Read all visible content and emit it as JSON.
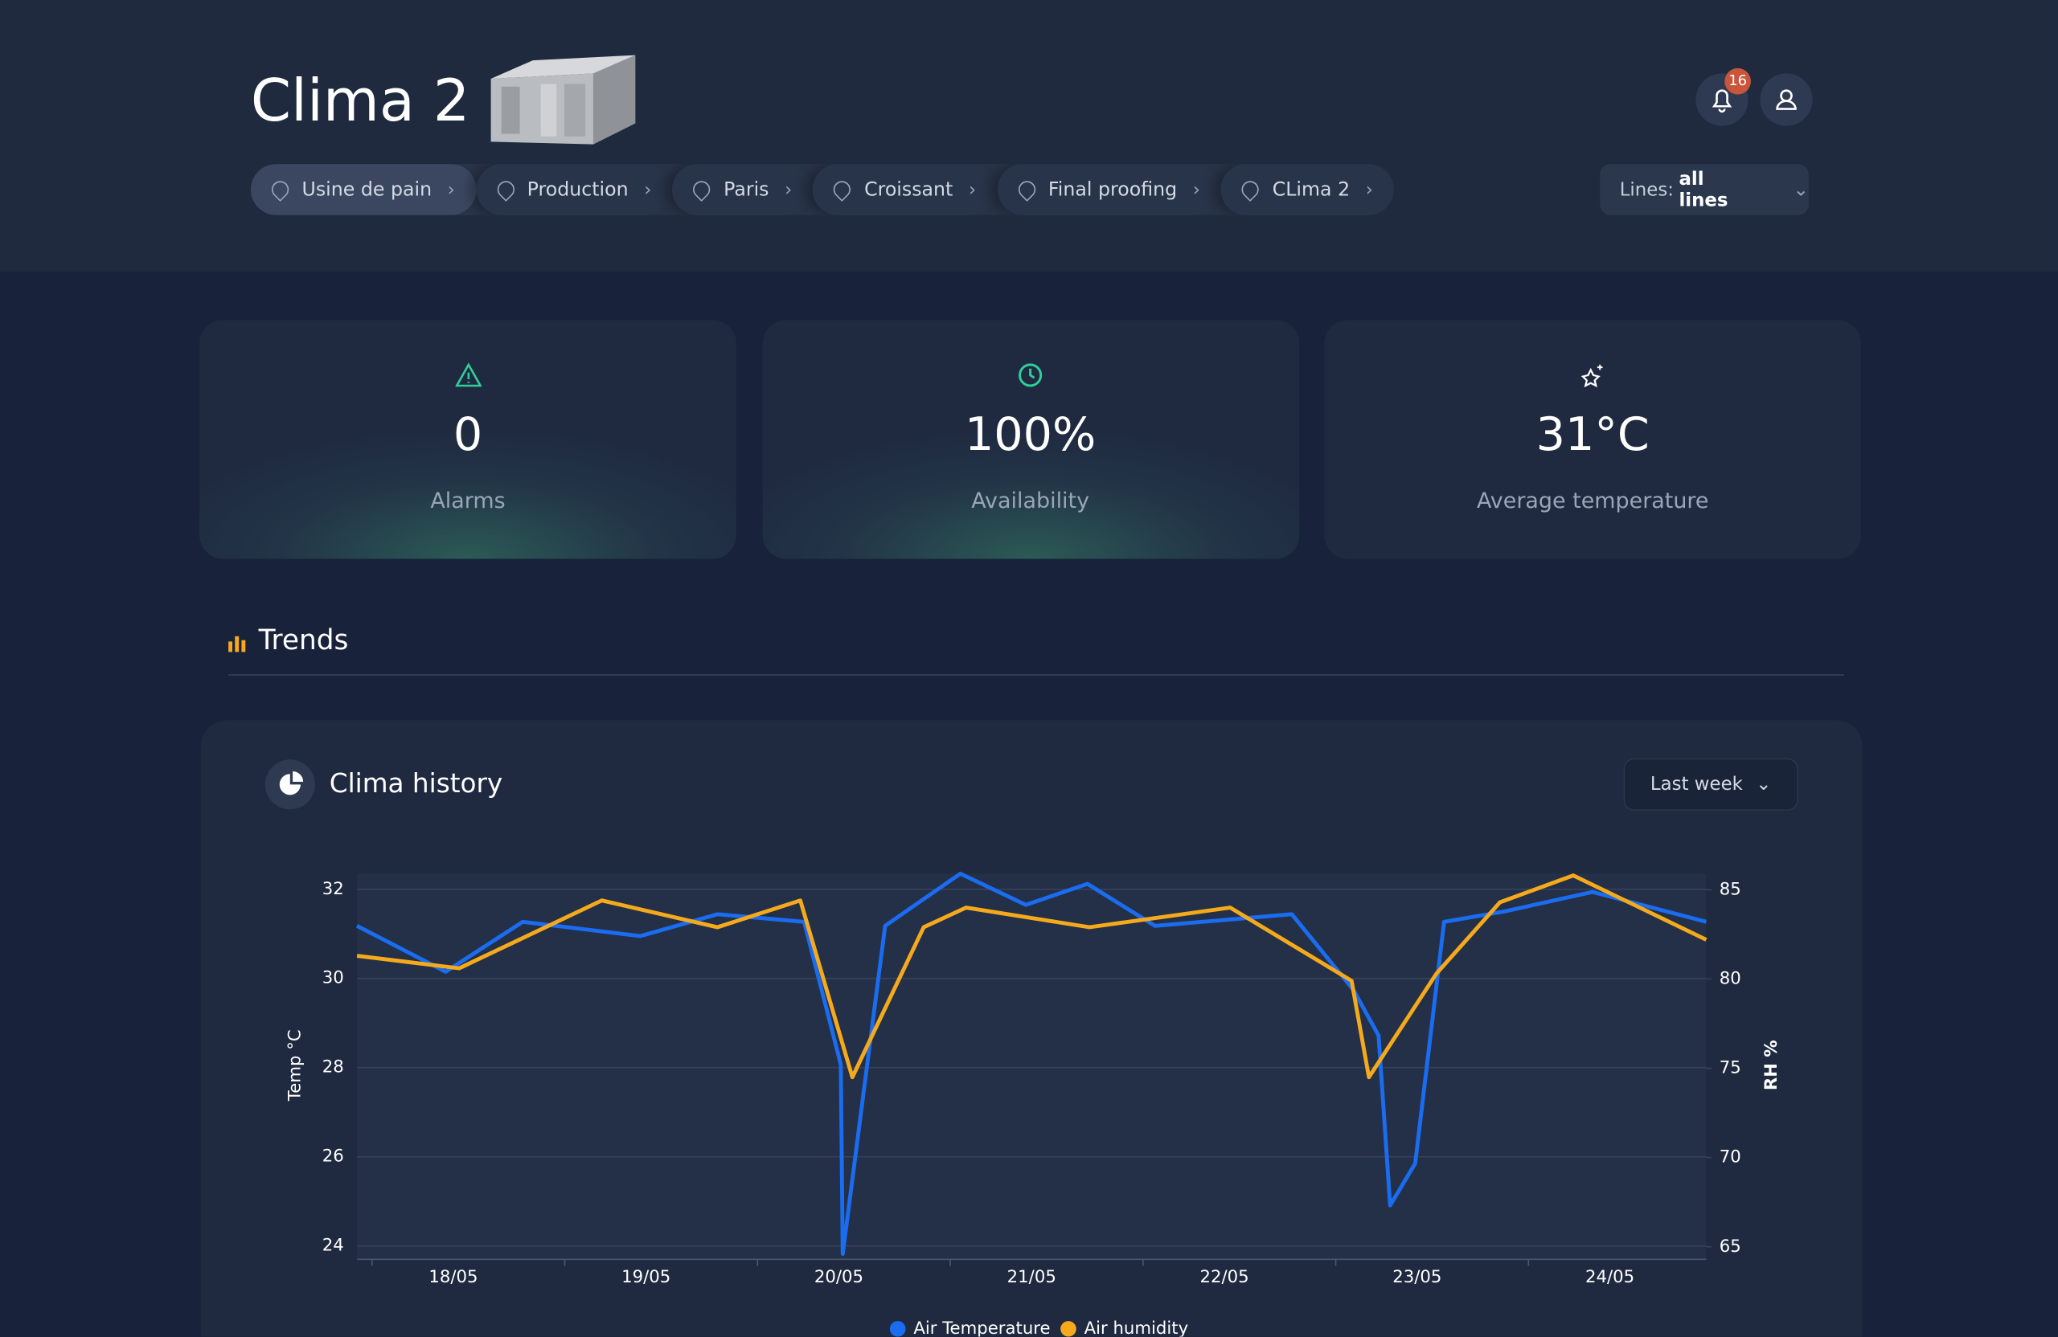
{
  "header": {
    "title": "Clima 2",
    "notifications": "16",
    "breadcrumbs": [
      "Usine de pain",
      "Production",
      "Paris",
      "Croissant",
      "Final proofing",
      "CLima 2"
    ],
    "lines_label": "Lines:",
    "lines_value": "all lines"
  },
  "kpis": [
    {
      "value": "0",
      "label": "Alarms"
    },
    {
      "value": "100%",
      "label": "Availability"
    },
    {
      "value": "31°C",
      "label": "Average temperature"
    }
  ],
  "section": "Trends",
  "chart_data": {
    "type": "line",
    "title": "Clima history",
    "period": "Last week",
    "ylabel": "Temp °C",
    "y2label": "RH %",
    "xlim": [
      17.5,
      24.5
    ],
    "xticks": [
      {
        "value": 18,
        "label": "18/05"
      },
      {
        "value": 19,
        "label": "19/05"
      },
      {
        "value": 20,
        "label": "20/05"
      },
      {
        "value": 21,
        "label": "21/05"
      },
      {
        "value": 22,
        "label": "22/05"
      },
      {
        "value": 23,
        "label": "23/05"
      },
      {
        "value": 24,
        "label": "24/05"
      }
    ],
    "ylim": [
      23.7,
      32.35
    ],
    "yticks": [
      24,
      26,
      28,
      30,
      32
    ],
    "y2lim": [
      64.3,
      85.9
    ],
    "y2ticks": [
      65,
      70,
      75,
      80,
      85
    ],
    "series": [
      {
        "name": "Air Temperature",
        "color": "#1a6cf0",
        "x": [
          17.5,
          17.96,
          18.36,
          18.97,
          19.37,
          19.82,
          20.01,
          20.02,
          20.24,
          20.63,
          20.97,
          21.29,
          21.64,
          22.35,
          22.67,
          22.8,
          22.86,
          22.99,
          23.14,
          23.45,
          23.91,
          24.5
        ],
        "values": [
          31.18,
          30.15,
          31.27,
          30.95,
          31.44,
          31.27,
          28.07,
          23.82,
          31.18,
          32.35,
          31.65,
          32.12,
          31.18,
          31.44,
          29.74,
          28.72,
          24.91,
          25.85,
          31.27,
          31.5,
          31.94,
          31.27
        ]
      },
      {
        "name": "Air humidity",
        "color": "#f5a91c",
        "axis": "y2",
        "x": [
          17.5,
          18.03,
          18.77,
          19.37,
          19.8,
          20.07,
          20.44,
          20.66,
          21.3,
          22.03,
          22.66,
          22.75,
          23.1,
          23.43,
          23.81,
          24.5
        ],
        "values": [
          81.3,
          80.6,
          84.4,
          82.9,
          84.4,
          74.5,
          82.9,
          84.0,
          82.9,
          84.0,
          79.9,
          74.5,
          80.3,
          84.3,
          85.8,
          82.2
        ]
      }
    ]
  }
}
